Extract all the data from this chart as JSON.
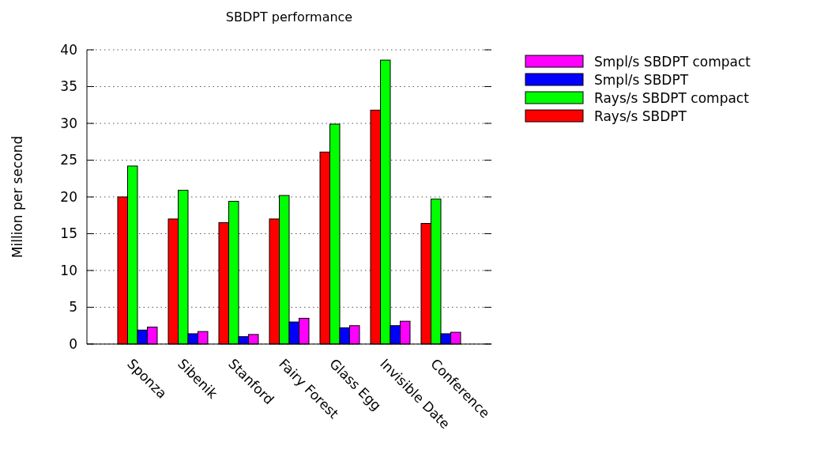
{
  "chart_data": {
    "type": "bar",
    "title": "SBDPT performance",
    "ylabel": "Million per second",
    "categories": [
      "Sponza",
      "Sibenik",
      "Stanford",
      "Fairy Forest",
      "Glass Egg",
      "Invisible Date",
      "Conference"
    ],
    "series": [
      {
        "name": "Rays/s SBDPT",
        "color": "#ff0000",
        "values": [
          20.0,
          17.0,
          16.5,
          17.0,
          26.1,
          31.8,
          16.4
        ]
      },
      {
        "name": "Rays/s SBDPT compact",
        "color": "#00ff00",
        "values": [
          24.2,
          20.9,
          19.4,
          20.2,
          29.9,
          38.6,
          19.7
        ]
      },
      {
        "name": "Smpl/s SBDPT",
        "color": "#0000ff",
        "values": [
          1.9,
          1.4,
          1.0,
          3.0,
          2.2,
          2.5,
          1.4
        ]
      },
      {
        "name": "Smpl/s SBDPT compact",
        "color": "#ff00ff",
        "values": [
          2.3,
          1.7,
          1.3,
          3.5,
          2.5,
          3.1,
          1.6
        ]
      }
    ],
    "ylim": [
      0,
      40
    ],
    "yticks": [
      0,
      5,
      10,
      15,
      20,
      25,
      30,
      35,
      40
    ],
    "grid": "y",
    "legend": "right"
  }
}
